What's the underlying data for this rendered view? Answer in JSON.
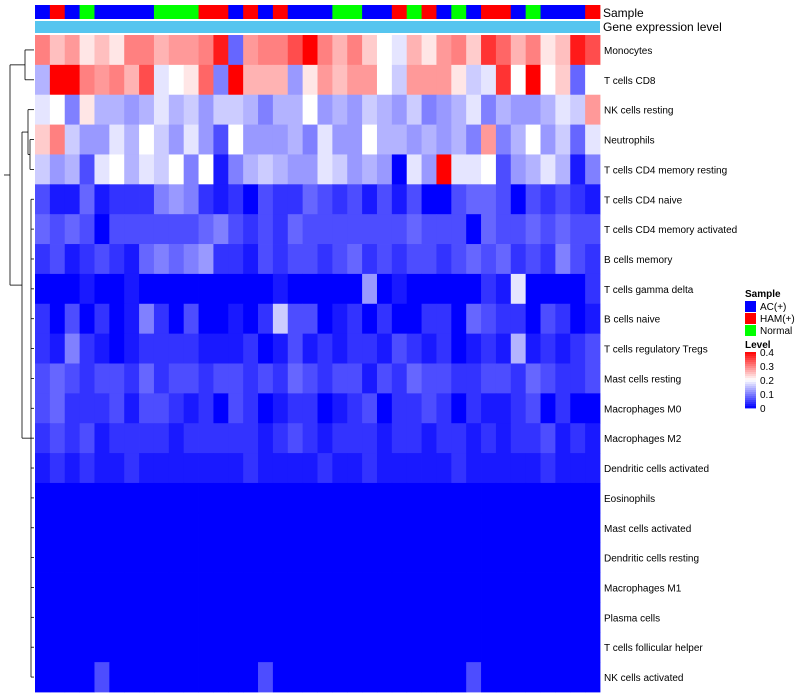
{
  "chart_data": {
    "type": "heatmap",
    "title": "",
    "annotation_labels": [
      "Sample",
      "Gene expression level"
    ],
    "rows": [
      "Monocytes",
      "T cells CD8",
      "NK cells resting",
      "Neutrophils",
      "T cells CD4 memory resting",
      "T cells CD4 naive",
      "T cells CD4 memory activated",
      "B cells memory",
      "T cells gamma delta",
      "B cells naive",
      "T cells regulatory  Tregs",
      "Mast cells resting",
      "Macrophages M0",
      "Macrophages M2",
      "Dendritic cells activated",
      "Eosinophils",
      "Mast cells activated",
      "Dendritic cells resting",
      "Macrophages M1",
      "Plasma cells",
      "T cells follicular helper",
      "NK cells activated"
    ],
    "sample_groups": [
      "AC(+)",
      "HAM(+)",
      "AC(+)",
      "Normal",
      "AC(+)",
      "AC(+)",
      "AC(+)",
      "AC(+)",
      "Normal",
      "Normal",
      "Normal",
      "HAM(+)",
      "HAM(+)",
      "AC(+)",
      "HAM(+)",
      "AC(+)",
      "HAM(+)",
      "AC(+)",
      "AC(+)",
      "AC(+)",
      "Normal",
      "Normal",
      "AC(+)",
      "AC(+)",
      "HAM(+)",
      "Normal",
      "HAM(+)",
      "AC(+)",
      "Normal",
      "AC(+)",
      "HAM(+)",
      "HAM(+)",
      "AC(+)",
      "Normal",
      "AC(+)",
      "AC(+)",
      "AC(+)",
      "HAM(+)"
    ],
    "values": [
      [
        0.3,
        0.25,
        0.28,
        0.22,
        0.25,
        0.22,
        0.3,
        0.3,
        0.26,
        0.28,
        0.28,
        0.3,
        0.38,
        0.08,
        0.28,
        0.3,
        0.3,
        0.34,
        0.4,
        0.3,
        0.26,
        0.3,
        0.24,
        0.2,
        0.18,
        0.26,
        0.22,
        0.28,
        0.3,
        0.24,
        0.36,
        0.32,
        0.26,
        0.3,
        0.22,
        0.25,
        0.38,
        0.34
      ],
      [
        0.14,
        0.42,
        0.42,
        0.3,
        0.28,
        0.3,
        0.26,
        0.34,
        0.18,
        0.2,
        0.22,
        0.32,
        0.1,
        0.4,
        0.26,
        0.26,
        0.26,
        0.12,
        0.22,
        0.28,
        0.25,
        0.28,
        0.28,
        0.2,
        0.16,
        0.28,
        0.28,
        0.28,
        0.22,
        0.16,
        0.18,
        0.36,
        0.2,
        0.4,
        0.2,
        0.24,
        0.08,
        0.2
      ],
      [
        0.18,
        0.2,
        0.1,
        0.22,
        0.14,
        0.14,
        0.12,
        0.14,
        0.18,
        0.14,
        0.16,
        0.12,
        0.16,
        0.16,
        0.14,
        0.1,
        0.14,
        0.14,
        0.2,
        0.12,
        0.14,
        0.12,
        0.16,
        0.14,
        0.12,
        0.16,
        0.1,
        0.12,
        0.14,
        0.18,
        0.1,
        0.14,
        0.12,
        0.12,
        0.14,
        0.18,
        0.16,
        0.28
      ],
      [
        0.24,
        0.3,
        0.16,
        0.12,
        0.12,
        0.18,
        0.14,
        0.2,
        0.16,
        0.12,
        0.18,
        0.12,
        0.06,
        0.2,
        0.12,
        0.12,
        0.12,
        0.14,
        0.1,
        0.18,
        0.12,
        0.12,
        0.2,
        0.14,
        0.14,
        0.12,
        0.14,
        0.12,
        0.14,
        0.1,
        0.28,
        0.1,
        0.14,
        0.2,
        0.12,
        0.16,
        0.08,
        0.18
      ],
      [
        0.16,
        0.12,
        0.14,
        0.06,
        0.18,
        0.2,
        0.14,
        0.18,
        0.16,
        0.2,
        0.1,
        0.2,
        0.02,
        0.1,
        0.14,
        0.16,
        0.14,
        0.12,
        0.12,
        0.18,
        0.16,
        0.12,
        0.14,
        0.12,
        0.0,
        0.18,
        0.12,
        0.42,
        0.18,
        0.18,
        0.2,
        0.06,
        0.12,
        0.14,
        0.18,
        0.14,
        0.02,
        0.1
      ],
      [
        0.06,
        0.02,
        0.02,
        0.08,
        0.02,
        0.04,
        0.04,
        0.04,
        0.1,
        0.12,
        0.1,
        0.04,
        0.02,
        0.04,
        0.0,
        0.06,
        0.04,
        0.04,
        0.08,
        0.06,
        0.04,
        0.06,
        0.02,
        0.06,
        0.02,
        0.06,
        0.0,
        0.0,
        0.06,
        0.08,
        0.08,
        0.06,
        0.0,
        0.06,
        0.04,
        0.06,
        0.04,
        0.02
      ],
      [
        0.08,
        0.06,
        0.08,
        0.06,
        0.0,
        0.06,
        0.06,
        0.06,
        0.06,
        0.06,
        0.06,
        0.08,
        0.1,
        0.06,
        0.04,
        0.06,
        0.04,
        0.08,
        0.06,
        0.06,
        0.06,
        0.06,
        0.06,
        0.06,
        0.06,
        0.08,
        0.06,
        0.06,
        0.06,
        0.0,
        0.08,
        0.06,
        0.06,
        0.08,
        0.06,
        0.08,
        0.06,
        0.06
      ],
      [
        0.04,
        0.06,
        0.02,
        0.04,
        0.06,
        0.04,
        0.02,
        0.08,
        0.1,
        0.08,
        0.1,
        0.12,
        0.04,
        0.04,
        0.02,
        0.06,
        0.04,
        0.06,
        0.06,
        0.04,
        0.06,
        0.08,
        0.04,
        0.06,
        0.04,
        0.06,
        0.06,
        0.04,
        0.06,
        0.08,
        0.06,
        0.08,
        0.04,
        0.06,
        0.04,
        0.1,
        0.06,
        0.04
      ],
      [
        0.0,
        0.0,
        0.0,
        0.02,
        0.0,
        0.0,
        0.02,
        0.0,
        0.0,
        0.0,
        0.0,
        0.0,
        0.0,
        0.0,
        0.0,
        0.0,
        0.02,
        0.0,
        0.0,
        0.0,
        0.0,
        0.0,
        0.12,
        0.0,
        0.02,
        0.0,
        0.0,
        0.0,
        0.0,
        0.0,
        0.04,
        0.02,
        0.18,
        0.0,
        0.0,
        0.0,
        0.0,
        0.04
      ],
      [
        0.04,
        0.0,
        0.06,
        0.0,
        0.04,
        0.0,
        0.02,
        0.1,
        0.04,
        0.0,
        0.06,
        0.0,
        0.0,
        0.02,
        0.0,
        0.04,
        0.16,
        0.06,
        0.06,
        0.0,
        0.02,
        0.04,
        0.0,
        0.04,
        0.0,
        0.0,
        0.04,
        0.04,
        0.0,
        0.08,
        0.06,
        0.04,
        0.04,
        0.0,
        0.06,
        0.04,
        0.0,
        0.02
      ],
      [
        0.04,
        0.02,
        0.1,
        0.04,
        0.02,
        0.0,
        0.02,
        0.04,
        0.04,
        0.04,
        0.04,
        0.02,
        0.02,
        0.02,
        0.04,
        0.0,
        0.02,
        0.06,
        0.02,
        0.04,
        0.02,
        0.04,
        0.04,
        0.02,
        0.06,
        0.04,
        0.02,
        0.04,
        0.0,
        0.02,
        0.04,
        0.02,
        0.14,
        0.02,
        0.04,
        0.02,
        0.04,
        0.06
      ],
      [
        0.06,
        0.08,
        0.06,
        0.04,
        0.06,
        0.06,
        0.04,
        0.08,
        0.04,
        0.06,
        0.06,
        0.04,
        0.06,
        0.06,
        0.04,
        0.06,
        0.04,
        0.08,
        0.06,
        0.04,
        0.06,
        0.06,
        0.02,
        0.06,
        0.04,
        0.08,
        0.06,
        0.06,
        0.04,
        0.04,
        0.06,
        0.06,
        0.04,
        0.08,
        0.06,
        0.04,
        0.04,
        0.06
      ],
      [
        0.06,
        0.08,
        0.04,
        0.04,
        0.04,
        0.06,
        0.02,
        0.06,
        0.06,
        0.04,
        0.02,
        0.04,
        0.0,
        0.06,
        0.04,
        0.0,
        0.02,
        0.04,
        0.04,
        0.0,
        0.02,
        0.04,
        0.06,
        0.0,
        0.04,
        0.04,
        0.06,
        0.04,
        0.0,
        0.04,
        0.02,
        0.02,
        0.04,
        0.06,
        0.0,
        0.04,
        0.0,
        0.0
      ],
      [
        0.04,
        0.06,
        0.04,
        0.06,
        0.02,
        0.04,
        0.04,
        0.04,
        0.04,
        0.02,
        0.04,
        0.04,
        0.04,
        0.04,
        0.04,
        0.02,
        0.04,
        0.06,
        0.04,
        0.02,
        0.04,
        0.04,
        0.04,
        0.02,
        0.04,
        0.04,
        0.02,
        0.04,
        0.04,
        0.02,
        0.04,
        0.02,
        0.04,
        0.04,
        0.06,
        0.02,
        0.04,
        0.02
      ],
      [
        0.02,
        0.04,
        0.02,
        0.04,
        0.02,
        0.02,
        0.04,
        0.02,
        0.02,
        0.02,
        0.02,
        0.02,
        0.02,
        0.02,
        0.04,
        0.02,
        0.02,
        0.02,
        0.02,
        0.04,
        0.02,
        0.02,
        0.04,
        0.02,
        0.02,
        0.02,
        0.02,
        0.02,
        0.04,
        0.02,
        0.02,
        0.02,
        0.02,
        0.02,
        0.04,
        0.02,
        0.02,
        0.02
      ],
      [
        0.0,
        0.0,
        0.0,
        0.0,
        0.0,
        0.0,
        0.0,
        0.0,
        0.0,
        0.0,
        0.0,
        0.0,
        0.0,
        0.0,
        0.0,
        0.0,
        0.0,
        0.0,
        0.0,
        0.0,
        0.0,
        0.0,
        0.0,
        0.0,
        0.0,
        0.0,
        0.0,
        0.0,
        0.0,
        0.0,
        0.0,
        0.0,
        0.0,
        0.0,
        0.0,
        0.0,
        0.0,
        0.0
      ],
      [
        0.0,
        0.0,
        0.0,
        0.0,
        0.0,
        0.0,
        0.0,
        0.0,
        0.0,
        0.0,
        0.0,
        0.0,
        0.0,
        0.0,
        0.0,
        0.0,
        0.0,
        0.0,
        0.0,
        0.0,
        0.0,
        0.0,
        0.0,
        0.0,
        0.0,
        0.0,
        0.0,
        0.0,
        0.0,
        0.0,
        0.0,
        0.0,
        0.0,
        0.0,
        0.0,
        0.0,
        0.0,
        0.0
      ],
      [
        0.0,
        0.0,
        0.0,
        0.0,
        0.0,
        0.0,
        0.0,
        0.0,
        0.0,
        0.0,
        0.0,
        0.0,
        0.0,
        0.0,
        0.0,
        0.0,
        0.0,
        0.0,
        0.0,
        0.0,
        0.0,
        0.0,
        0.0,
        0.0,
        0.0,
        0.0,
        0.0,
        0.0,
        0.0,
        0.0,
        0.0,
        0.0,
        0.0,
        0.0,
        0.0,
        0.0,
        0.0,
        0.0
      ],
      [
        0.0,
        0.0,
        0.0,
        0.0,
        0.0,
        0.0,
        0.0,
        0.0,
        0.0,
        0.0,
        0.0,
        0.0,
        0.0,
        0.0,
        0.0,
        0.0,
        0.0,
        0.0,
        0.0,
        0.0,
        0.0,
        0.0,
        0.0,
        0.0,
        0.0,
        0.0,
        0.0,
        0.0,
        0.0,
        0.0,
        0.0,
        0.0,
        0.0,
        0.0,
        0.0,
        0.0,
        0.0,
        0.0
      ],
      [
        0.0,
        0.0,
        0.0,
        0.0,
        0.0,
        0.0,
        0.0,
        0.0,
        0.0,
        0.0,
        0.0,
        0.0,
        0.0,
        0.0,
        0.0,
        0.0,
        0.0,
        0.0,
        0.0,
        0.0,
        0.0,
        0.0,
        0.0,
        0.0,
        0.0,
        0.0,
        0.0,
        0.0,
        0.0,
        0.0,
        0.0,
        0.0,
        0.0,
        0.0,
        0.0,
        0.0,
        0.0,
        0.0
      ],
      [
        0.0,
        0.0,
        0.0,
        0.0,
        0.0,
        0.0,
        0.0,
        0.0,
        0.0,
        0.0,
        0.0,
        0.0,
        0.0,
        0.0,
        0.0,
        0.0,
        0.0,
        0.0,
        0.0,
        0.0,
        0.0,
        0.0,
        0.0,
        0.0,
        0.0,
        0.0,
        0.0,
        0.0,
        0.0,
        0.0,
        0.0,
        0.0,
        0.0,
        0.0,
        0.0,
        0.0,
        0.0,
        0.0
      ],
      [
        0.0,
        0.0,
        0.0,
        0.0,
        0.06,
        0.0,
        0.0,
        0.0,
        0.0,
        0.0,
        0.0,
        0.0,
        0.0,
        0.0,
        0.0,
        0.06,
        0.0,
        0.0,
        0.0,
        0.0,
        0.0,
        0.0,
        0.0,
        0.0,
        0.0,
        0.0,
        0.0,
        0.0,
        0.0,
        0.06,
        0.0,
        0.0,
        0.0,
        0.0,
        0.0,
        0.0,
        0.0,
        0.0
      ]
    ],
    "color_scale": {
      "min": 0,
      "max": 0.4,
      "low": "#0000ff",
      "mid": "#ffffff",
      "high": "#ff0000"
    },
    "legend": {
      "sample_title": "Sample",
      "sample_items": [
        {
          "label": "AC(+)",
          "color": "#0000ff"
        },
        {
          "label": "HAM(+)",
          "color": "#ff0000"
        },
        {
          "label": "Normal",
          "color": "#00ff00"
        }
      ],
      "level_title": "Level",
      "level_ticks": [
        "0.4",
        "0.3",
        "0.2",
        "0.1",
        "0"
      ],
      "level_tick_values": [
        0.4,
        0.3,
        0.2,
        0.1,
        0
      ],
      "placement": "right"
    },
    "expression_bar_color": "#56c5ef"
  }
}
